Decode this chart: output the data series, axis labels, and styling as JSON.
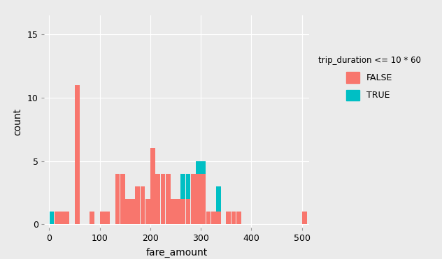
{
  "title": "",
  "xlabel": "fare_amount",
  "ylabel": "count",
  "legend_title": "trip_duration <= 10 * 60",
  "legend_labels": [
    "FALSE",
    "TRUE"
  ],
  "colors": {
    "FALSE": "#F8766D",
    "TRUE": "#00BFC4"
  },
  "ylim": [
    -0.3,
    16.5
  ],
  "xlim": [
    -10,
    515
  ],
  "yticks": [
    0,
    5,
    10,
    15
  ],
  "xticks": [
    0,
    100,
    200,
    300,
    400,
    500
  ],
  "background_color": "#EBEBEB",
  "grid_color": "#FFFFFF",
  "bin_width": 10,
  "false_bins": [
    0,
    10,
    20,
    30,
    40,
    50,
    60,
    70,
    80,
    90,
    100,
    110,
    120,
    130,
    140,
    150,
    160,
    170,
    180,
    190,
    200,
    210,
    220,
    230,
    240,
    250,
    260,
    270,
    280,
    290,
    300,
    310,
    320,
    330,
    340,
    350,
    360,
    370,
    380,
    390,
    400,
    410,
    420,
    430,
    440,
    450,
    460,
    470,
    480,
    490,
    500,
    510
  ],
  "false_counts": [
    0,
    1,
    1,
    1,
    0,
    11,
    0,
    0,
    1,
    0,
    1,
    1,
    0,
    4,
    4,
    2,
    2,
    3,
    3,
    2,
    6,
    4,
    4,
    4,
    2,
    2,
    2,
    2,
    4,
    4,
    4,
    1,
    1,
    1,
    0,
    1,
    1,
    1,
    0,
    0,
    0,
    0,
    0,
    0,
    0,
    0,
    0,
    0,
    0,
    0,
    1,
    0
  ],
  "true_counts": [
    1,
    0,
    0,
    0,
    0,
    0,
    0,
    0,
    0,
    0,
    0,
    0,
    0,
    0,
    0,
    0,
    0,
    0,
    0,
    0,
    0,
    0,
    0,
    0,
    0,
    0,
    2,
    2,
    0,
    1,
    1,
    0,
    0,
    2,
    0,
    0,
    0,
    0,
    0,
    0,
    0,
    0,
    0,
    0,
    0,
    0,
    0,
    0,
    0,
    0,
    0,
    0
  ]
}
